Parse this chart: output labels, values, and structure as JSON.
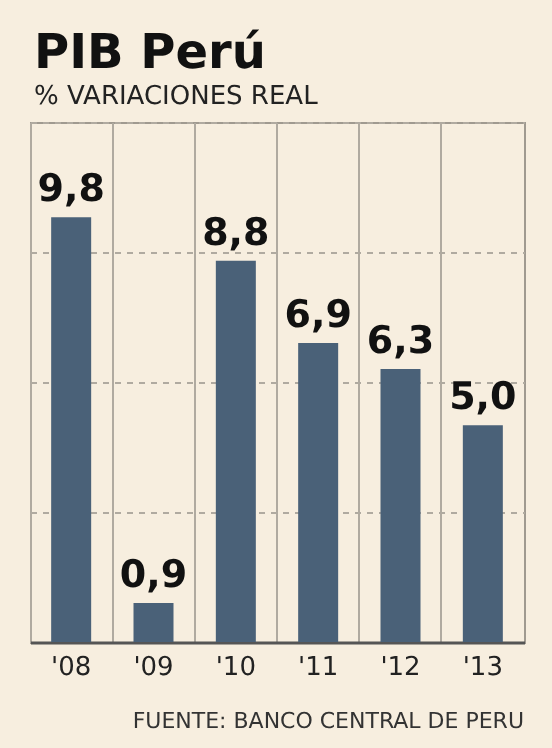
{
  "chart_data": {
    "type": "bar",
    "title": "PIB Perú",
    "subtitle": "% VARIACIONES REAL",
    "categories": [
      "'08",
      "'09",
      "'10",
      "'11",
      "'12",
      "'13"
    ],
    "values": [
      9.8,
      0.9,
      8.8,
      6.9,
      6.3,
      5.0
    ],
    "value_labels": [
      "9,8",
      "0,9",
      "8,8",
      "6,9",
      "6,3",
      "5,0"
    ],
    "color": "#4a6178",
    "ylim": [
      0,
      12
    ],
    "yticks": [
      {
        "value": 0,
        "label": null
      },
      {
        "value": 3,
        "label": null
      },
      {
        "value": 6,
        "label": null
      },
      {
        "value": 9,
        "label": null
      },
      {
        "value": 12,
        "label": null
      }
    ],
    "tick_labels": "x",
    "grid": true,
    "annotations": [
      "FUENTE: BANCO CENTRAL DE PERU"
    ]
  }
}
